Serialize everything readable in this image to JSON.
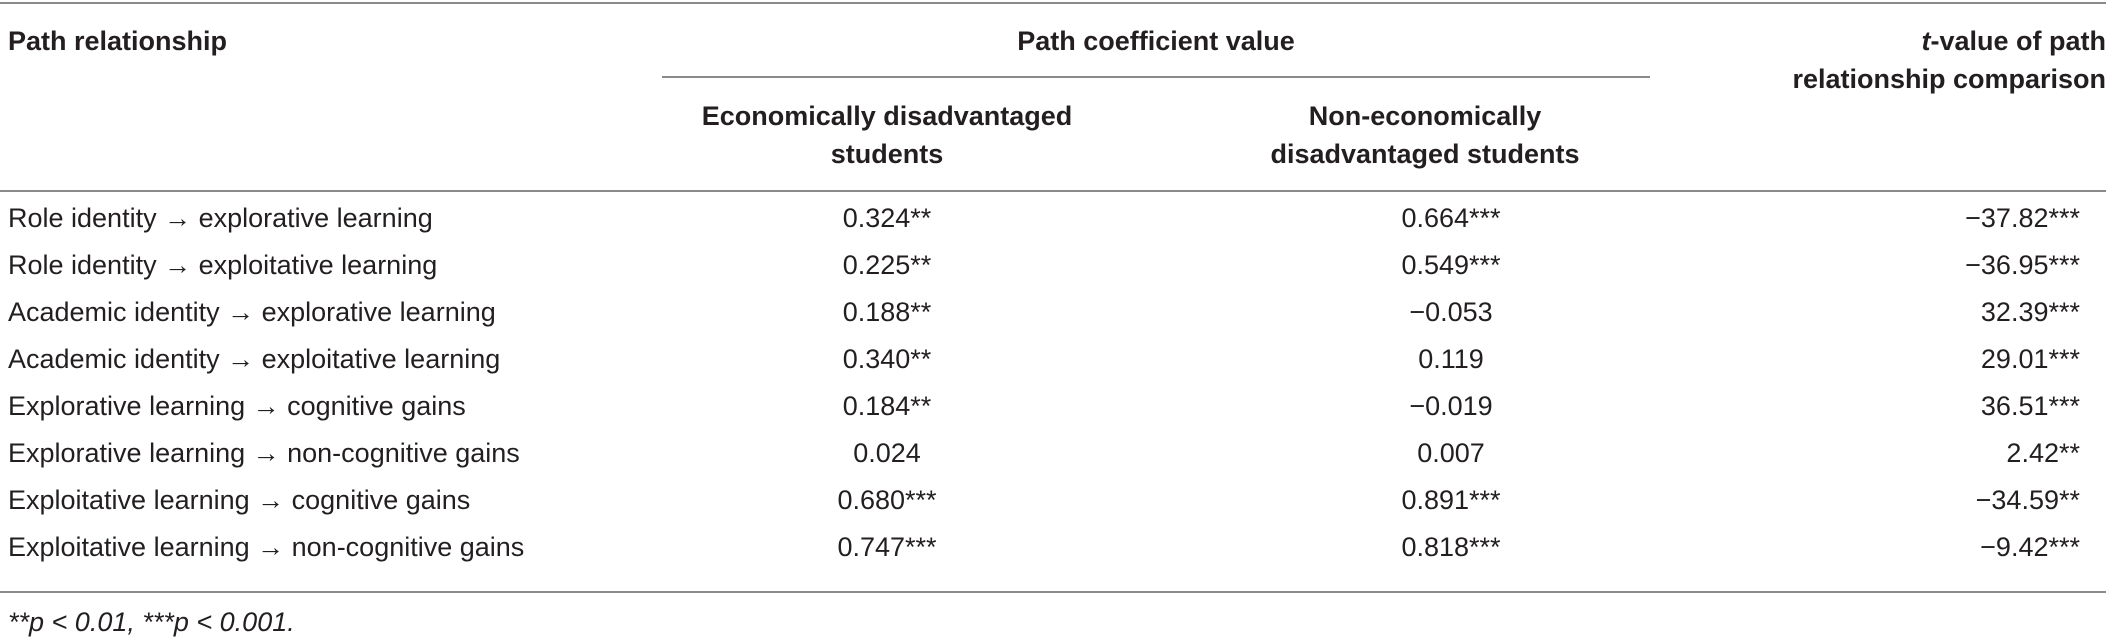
{
  "table": {
    "headers": {
      "path": "Path relationship",
      "coef_group": "Path coefficient value",
      "econ_line1": "Economically disadvantaged",
      "econ_line2": "students",
      "nonecon_line1": "Non-economically",
      "nonecon_line2": "disadvantaged students",
      "tval_italic": "t",
      "tval_line1_rest": "-value of path",
      "tval_line2": "relationship comparison"
    },
    "rows": [
      {
        "path": "Role identity → explorative learning",
        "econ": "0.324**",
        "nonecon": "0.664***",
        "tval": "−37.82***"
      },
      {
        "path": "Role identity → exploitative learning",
        "econ": "0.225**",
        "nonecon": "0.549***",
        "tval": "−36.95***"
      },
      {
        "path": "Academic identity → explorative learning",
        "econ": "0.188**",
        "nonecon": "−0.053",
        "tval": "32.39***"
      },
      {
        "path": "Academic identity → exploitative learning",
        "econ": "0.340**",
        "nonecon": "0.119",
        "tval": "29.01***"
      },
      {
        "path": "Explorative learning → cognitive gains",
        "econ": "0.184**",
        "nonecon": "−0.019",
        "tval": "36.51***"
      },
      {
        "path": "Explorative learning → non-cognitive gains",
        "econ": "0.024",
        "nonecon": "0.007",
        "tval": "2.42**"
      },
      {
        "path": "Exploitative learning → cognitive gains",
        "econ": "0.680***",
        "nonecon": "0.891***",
        "tval": "−34.59**"
      },
      {
        "path": "Exploitative learning → non-cognitive gains",
        "econ": "0.747***",
        "nonecon": "0.818***",
        "tval": "−9.42***"
      }
    ],
    "note": "**p < 0.01, ***p < 0.001."
  }
}
